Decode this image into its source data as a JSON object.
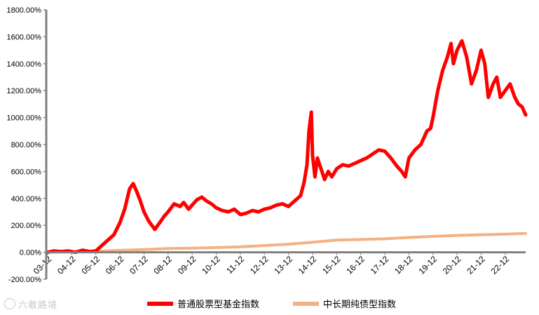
{
  "chart_data": {
    "type": "line",
    "title": "",
    "xlabel": "",
    "ylabel": "",
    "ylim": [
      -200,
      1800
    ],
    "yticks": [
      -200,
      0,
      200,
      400,
      600,
      800,
      1000,
      1200,
      1400,
      1600,
      1800
    ],
    "ytick_labels": [
      "-200.00%",
      "0.00%",
      "200.00%",
      "400.00%",
      "600.00%",
      "800.00%",
      "1000.00%",
      "1200.00%",
      "1400.00%",
      "1600.00%",
      "1800.00%"
    ],
    "xlim": [
      2003.95,
      2023.8
    ],
    "xticks": [
      2003.95,
      2004.95,
      2005.95,
      2006.95,
      2007.95,
      2008.95,
      2009.95,
      2010.95,
      2011.95,
      2012.95,
      2013.95,
      2014.95,
      2015.95,
      2016.95,
      2017.95,
      2018.95,
      2019.95,
      2020.95,
      2021.95,
      2022.95
    ],
    "xtick_labels": [
      "03-12",
      "04-12",
      "05-12",
      "06-12",
      "07-12",
      "08-12",
      "09-12",
      "10-12",
      "11-12",
      "12-12",
      "13-12",
      "14-12",
      "15-12",
      "16-12",
      "17-12",
      "18-12",
      "19-12",
      "20-12",
      "21-12",
      "22-12"
    ],
    "grid": false,
    "legend_position": "bottom",
    "series": [
      {
        "name": "普通股票型基金指数",
        "color": "#ff0000",
        "x": [
          2003.95,
          2004.2,
          2004.5,
          2004.8,
          2005.1,
          2005.4,
          2005.7,
          2005.95,
          2006.2,
          2006.45,
          2006.7,
          2006.95,
          2007.15,
          2007.35,
          2007.5,
          2007.65,
          2007.8,
          2007.95,
          2008.15,
          2008.4,
          2008.6,
          2008.8,
          2008.95,
          2009.2,
          2009.45,
          2009.6,
          2009.8,
          2009.95,
          2010.15,
          2010.35,
          2010.55,
          2010.75,
          2010.95,
          2011.2,
          2011.45,
          2011.7,
          2011.95,
          2012.2,
          2012.45,
          2012.7,
          2012.95,
          2013.2,
          2013.45,
          2013.7,
          2013.95,
          2014.2,
          2014.45,
          2014.6,
          2014.72,
          2014.8,
          2014.9,
          2014.95,
          2015.05,
          2015.15,
          2015.3,
          2015.45,
          2015.6,
          2015.75,
          2015.95,
          2016.2,
          2016.45,
          2016.7,
          2016.95,
          2017.2,
          2017.45,
          2017.7,
          2017.95,
          2018.2,
          2018.45,
          2018.65,
          2018.8,
          2018.95,
          2019.2,
          2019.45,
          2019.7,
          2019.85,
          2019.95,
          2020.15,
          2020.35,
          2020.55,
          2020.7,
          2020.8,
          2020.95,
          2021.15,
          2021.35,
          2021.55,
          2021.75,
          2021.95,
          2022.1,
          2022.25,
          2022.45,
          2022.6,
          2022.75,
          2022.95,
          2023.15,
          2023.35,
          2023.5,
          2023.65,
          2023.8
        ],
        "values": [
          0,
          10,
          5,
          10,
          0,
          15,
          5,
          10,
          50,
          90,
          130,
          220,
          320,
          470,
          510,
          450,
          380,
          300,
          230,
          170,
          220,
          270,
          300,
          360,
          340,
          370,
          320,
          350,
          390,
          410,
          380,
          360,
          330,
          310,
          300,
          320,
          280,
          290,
          310,
          300,
          320,
          330,
          350,
          360,
          340,
          380,
          420,
          520,
          650,
          900,
          1040,
          720,
          560,
          700,
          620,
          540,
          600,
          560,
          620,
          650,
          640,
          660,
          680,
          700,
          730,
          760,
          750,
          700,
          640,
          600,
          560,
          700,
          760,
          800,
          900,
          920,
          1000,
          1200,
          1350,
          1450,
          1550,
          1400,
          1500,
          1570,
          1450,
          1250,
          1350,
          1500,
          1400,
          1150,
          1250,
          1300,
          1150,
          1200,
          1250,
          1150,
          1100,
          1080,
          1020
        ]
      },
      {
        "name": "中长期纯债型指数",
        "color": "#f4b183",
        "x": [
          2003.95,
          2004.95,
          2005.95,
          2006.95,
          2007.95,
          2008.95,
          2009.95,
          2010.95,
          2011.95,
          2012.95,
          2013.95,
          2014.95,
          2015.95,
          2016.95,
          2017.95,
          2018.95,
          2019.95,
          2020.95,
          2021.95,
          2022.95,
          2023.8
        ],
        "values": [
          0,
          5,
          7,
          15,
          20,
          28,
          30,
          35,
          40,
          50,
          60,
          75,
          90,
          95,
          100,
          110,
          118,
          125,
          130,
          135,
          140
        ]
      }
    ]
  },
  "watermark": {
    "text": "六敢路境"
  }
}
